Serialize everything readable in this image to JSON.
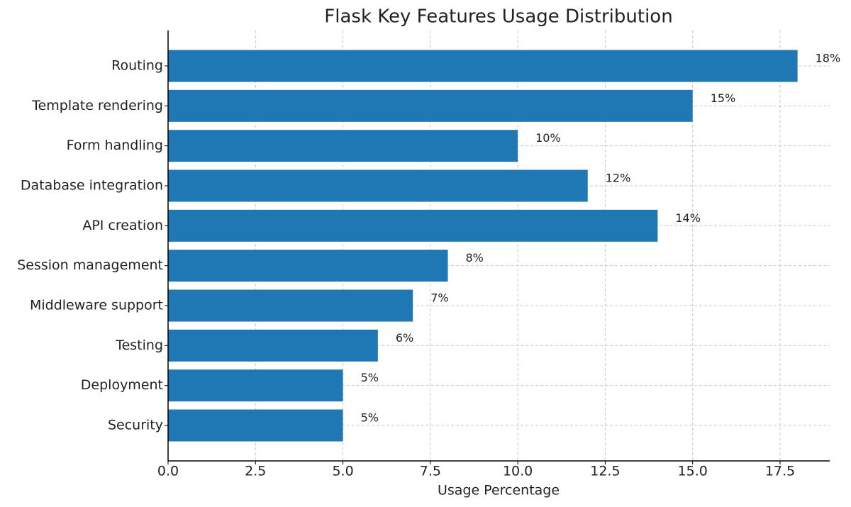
{
  "chart_data": {
    "type": "barh",
    "title": "Flask Key Features Usage Distribution",
    "x_label": "Usage Percentage",
    "categories": [
      "Routing",
      "Template rendering",
      "Form handling",
      "Database integration",
      "API creation",
      "Session management",
      "Middleware support",
      "Testing",
      "Deployment",
      "Security"
    ],
    "values": [
      18,
      15,
      10,
      12,
      14,
      8,
      7,
      6,
      5,
      5
    ],
    "value_labels": [
      "18%",
      "15%",
      "10%",
      "12%",
      "14%",
      "8%",
      "7%",
      "6%",
      "5%",
      "5%"
    ],
    "color": "#1f77b4",
    "xlim": [
      0,
      18.92
    ],
    "xticks": [
      {
        "value": 0,
        "label": "0.0"
      },
      2.5,
      {
        "value": 5,
        "label": "5.0"
      },
      7.5,
      {
        "value": 10,
        "label": "10.0"
      },
      12.5,
      {
        "value": 15,
        "label": "15.0"
      },
      17.5
    ],
    "grid": true
  }
}
